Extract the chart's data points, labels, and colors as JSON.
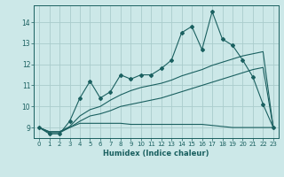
{
  "title": "",
  "xlabel": "Humidex (Indice chaleur)",
  "x_values": [
    0,
    1,
    2,
    3,
    4,
    5,
    6,
    7,
    8,
    9,
    10,
    11,
    12,
    13,
    14,
    15,
    16,
    17,
    18,
    19,
    20,
    21,
    22,
    23
  ],
  "line1_y": [
    9.0,
    8.7,
    8.7,
    9.3,
    10.4,
    11.2,
    10.4,
    10.7,
    11.5,
    11.3,
    11.5,
    11.5,
    11.8,
    12.2,
    13.5,
    13.8,
    12.7,
    14.5,
    13.2,
    12.9,
    12.2,
    11.4,
    10.1,
    9.0
  ],
  "line2_y": [
    9.0,
    8.75,
    8.75,
    9.0,
    9.2,
    9.2,
    9.2,
    9.2,
    9.2,
    9.15,
    9.15,
    9.15,
    9.15,
    9.15,
    9.15,
    9.15,
    9.15,
    9.1,
    9.05,
    9.0,
    9.0,
    9.0,
    9.0,
    9.0
  ],
  "line3_y": [
    9.0,
    8.8,
    8.8,
    9.0,
    9.3,
    9.55,
    9.65,
    9.8,
    10.0,
    10.1,
    10.2,
    10.3,
    10.4,
    10.55,
    10.7,
    10.85,
    11.0,
    11.15,
    11.3,
    11.45,
    11.6,
    11.75,
    11.85,
    9.0
  ],
  "line4_y": [
    9.0,
    8.8,
    8.8,
    9.05,
    9.55,
    9.85,
    10.0,
    10.3,
    10.55,
    10.75,
    10.9,
    11.0,
    11.1,
    11.25,
    11.45,
    11.6,
    11.75,
    11.95,
    12.1,
    12.25,
    12.4,
    12.5,
    12.6,
    9.0
  ],
  "bg_color": "#cce8e8",
  "grid_color": "#aacccc",
  "line_color": "#1a6060",
  "ylim": [
    8.5,
    14.8
  ],
  "xlim": [
    -0.5,
    23.5
  ],
  "yticks": [
    9,
    10,
    11,
    12,
    13,
    14
  ],
  "xticks": [
    0,
    1,
    2,
    3,
    4,
    5,
    6,
    7,
    8,
    9,
    10,
    11,
    12,
    13,
    14,
    15,
    16,
    17,
    18,
    19,
    20,
    21,
    22,
    23
  ],
  "xlabel_fontsize": 6.0,
  "tick_fontsize": 5.0,
  "linewidth": 0.8,
  "markersize": 2.0
}
